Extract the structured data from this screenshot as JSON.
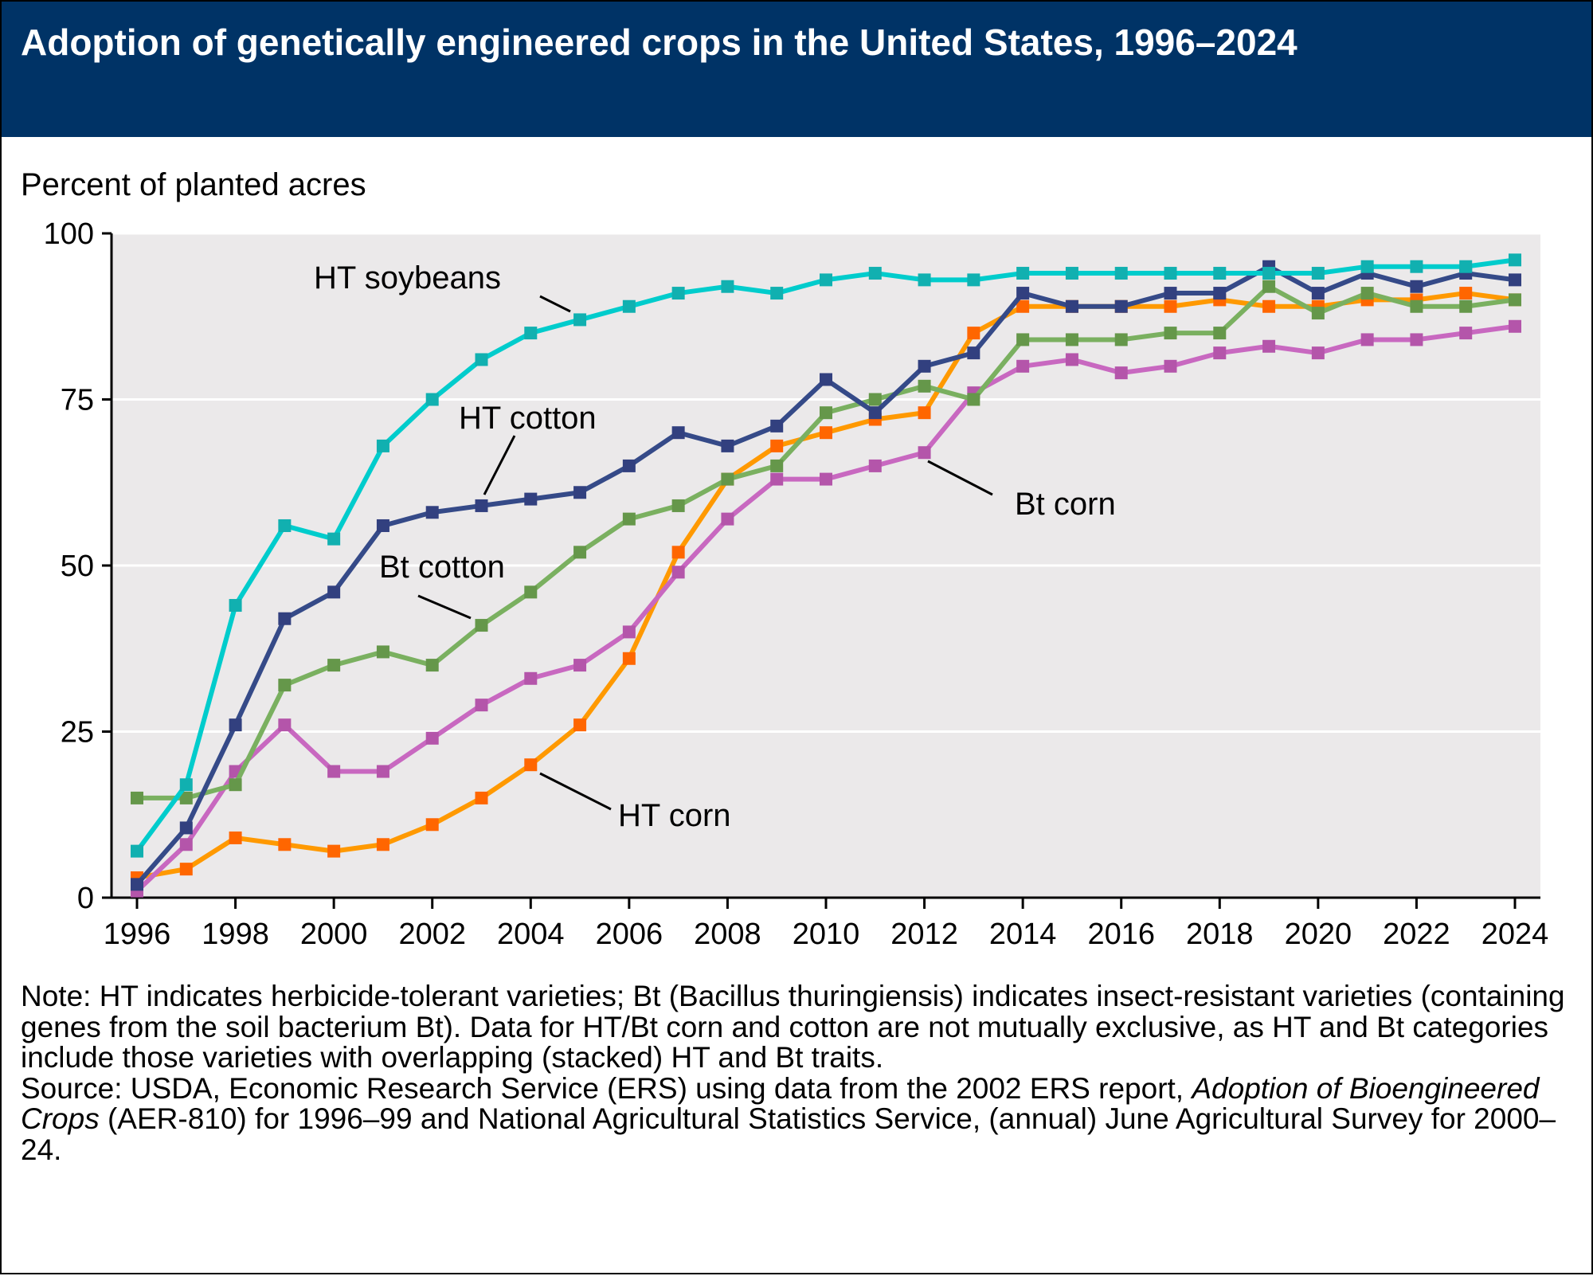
{
  "header": {
    "title": "Adoption of genetically engineered crops in the United States, 1996–2024"
  },
  "notes": {
    "note": "Note: HT indicates herbicide-tolerant varieties; Bt (Bacillus thuringiensis) indicates insect-resistant varieties (containing genes from the soil bacterium Bt). Data for HT/Bt corn and cotton are not mutually exclusive, as HT and Bt categories include those varieties with overlapping (stacked) HT and Bt traits.",
    "source_prefix": "Source: USDA, Economic Research Service (ERS) using data from the 2002 ERS report, ",
    "source_italic": "Adoption of Bioengineered Crops",
    "source_suffix": " (AER-810) for 1996–99 and National Agricultural Statistics Service, (annual) June Agricultural Survey for 2000–24."
  },
  "chart_data": {
    "type": "line",
    "title": "Adoption of genetically engineered crops in the United States, 1996–2024",
    "ylabel": "Percent of planted acres",
    "xlabel": "",
    "ylim": [
      0,
      100
    ],
    "xlim": [
      1996,
      2024
    ],
    "yticks": [
      0,
      25,
      50,
      75,
      100
    ],
    "xticks": [
      1996,
      1998,
      2000,
      2002,
      2004,
      2006,
      2008,
      2010,
      2012,
      2014,
      2016,
      2018,
      2020,
      2022,
      2024
    ],
    "grid": "horizontal",
    "x": [
      1996,
      1997,
      1998,
      1999,
      2000,
      2001,
      2002,
      2003,
      2004,
      2005,
      2006,
      2007,
      2008,
      2009,
      2010,
      2011,
      2012,
      2013,
      2014,
      2015,
      2016,
      2017,
      2018,
      2019,
      2020,
      2021,
      2022,
      2023,
      2024
    ],
    "series": [
      {
        "name": "HT corn",
        "line_color": "#FF9900",
        "marker_color": "#FF6600",
        "values": [
          3,
          4.3,
          9,
          8,
          7,
          8,
          11,
          15,
          20,
          26,
          36,
          52,
          63,
          68,
          70,
          72,
          73,
          85,
          89,
          89,
          89,
          89,
          90,
          89,
          89,
          90,
          90,
          91,
          90
        ]
      },
      {
        "name": "Bt corn",
        "line_color": "#C868C0",
        "marker_color": "#B455AA",
        "values": [
          1,
          8,
          19,
          26,
          19,
          19,
          24,
          29,
          33,
          35,
          40,
          49,
          57,
          63,
          63,
          65,
          67,
          76,
          80,
          81,
          79,
          80,
          82,
          83,
          82,
          84,
          84,
          85,
          86
        ]
      },
      {
        "name": "Bt cotton",
        "line_color": "#7AB060",
        "marker_color": "#65974A",
        "values": [
          15,
          15,
          17,
          32,
          35,
          37,
          35,
          41,
          46,
          52,
          57,
          59,
          63,
          65,
          73,
          75,
          77,
          75,
          84,
          84,
          84,
          85,
          85,
          92,
          88,
          91,
          89,
          89,
          90
        ]
      },
      {
        "name": "HT cotton",
        "line_color": "#354A88",
        "marker_color": "#32407F",
        "values": [
          2,
          10.5,
          26,
          42,
          46,
          56,
          58,
          59,
          60,
          61,
          65,
          70,
          68,
          71,
          78,
          73,
          80,
          82,
          91,
          89,
          89,
          91,
          91,
          95,
          91,
          94,
          92,
          94,
          93
        ]
      },
      {
        "name": "HT soybeans",
        "line_color": "#00CCCC",
        "marker_color": "#11B0B0",
        "values": [
          7,
          17,
          44,
          56,
          54,
          68,
          75,
          81,
          85,
          87,
          89,
          91,
          92,
          91,
          93,
          94,
          93,
          93,
          94,
          94,
          94,
          94,
          94,
          94,
          94,
          95,
          95,
          95,
          96
        ]
      }
    ]
  }
}
